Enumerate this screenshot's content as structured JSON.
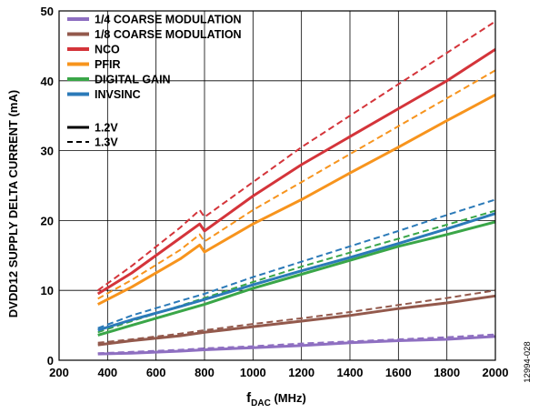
{
  "chart_data": {
    "type": "line",
    "xlabel_main": "f",
    "xlabel_sub": "DAC",
    "xlabel_unit": " (MHz)",
    "ylabel": "DVDD12 SUPPLY DELTA CURRENT (mA)",
    "xlim": [
      200,
      2000
    ],
    "ylim": [
      0,
      50
    ],
    "x_ticks": [
      200,
      400,
      600,
      800,
      1000,
      1200,
      1400,
      1600,
      1800,
      2000
    ],
    "y_ticks": [
      0,
      10,
      20,
      30,
      40,
      50
    ],
    "grid": true,
    "legend_position": "top-left",
    "figure_id": "12994-028",
    "voltage_styles": [
      {
        "name": "1.2V",
        "dash": "solid"
      },
      {
        "name": "1.3V",
        "dash": "dashed"
      }
    ],
    "series": [
      {
        "name": "1/4 COARSE MODULATION",
        "color": "#8e6fc1",
        "x_1_2V": [
          360,
          500,
          700,
          800,
          1000,
          1200,
          1400,
          1600,
          1800,
          2000
        ],
        "values_1_2V": [
          0.9,
          1.0,
          1.3,
          1.5,
          1.8,
          2.1,
          2.5,
          2.8,
          3.0,
          3.4
        ],
        "x_1_3V": [
          360,
          500,
          700,
          800,
          1000,
          1200,
          1400,
          1600,
          1800,
          2000
        ],
        "values_1_3V": [
          1.0,
          1.2,
          1.5,
          1.7,
          2.0,
          2.4,
          2.7,
          3.0,
          3.3,
          3.7
        ]
      },
      {
        "name": "1/8 COARSE MODULATION",
        "color": "#93594c",
        "x_1_2V": [
          360,
          500,
          700,
          800,
          1000,
          1200,
          1400,
          1600,
          1800,
          2000
        ],
        "values_1_2V": [
          2.2,
          2.8,
          3.5,
          4.0,
          4.8,
          5.6,
          6.4,
          7.4,
          8.2,
          9.2
        ],
        "x_1_3V": [
          360,
          500,
          700,
          800,
          1000,
          1200,
          1400,
          1600,
          1800,
          2000
        ],
        "values_1_3V": [
          2.5,
          3.0,
          3.8,
          4.3,
          5.2,
          6.0,
          6.9,
          7.9,
          8.9,
          10.0
        ]
      },
      {
        "name": "NCO",
        "color": "#d4343a",
        "x_1_2V": [
          360,
          500,
          700,
          780,
          800,
          1000,
          1200,
          1400,
          1600,
          1800,
          2000
        ],
        "values_1_2V": [
          9.5,
          12.5,
          17.5,
          19.5,
          18.5,
          23.5,
          28.0,
          32.0,
          36.0,
          40.0,
          44.5
        ],
        "x_1_3V": [
          360,
          500,
          700,
          780,
          800,
          1000,
          1200,
          1400,
          1600,
          1800,
          2000
        ],
        "values_1_3V": [
          10.0,
          13.5,
          19.0,
          21.5,
          20.5,
          25.5,
          30.5,
          35.0,
          39.5,
          44.0,
          48.5
        ]
      },
      {
        "name": "PFIR",
        "color": "#f7941d",
        "x_1_2V": [
          360,
          500,
          700,
          780,
          800,
          1000,
          1200,
          1400,
          1600,
          1800,
          2000
        ],
        "values_1_2V": [
          8.0,
          10.5,
          14.5,
          16.5,
          15.5,
          19.5,
          23.0,
          26.8,
          30.5,
          34.3,
          38.0
        ],
        "x_1_3V": [
          360,
          500,
          700,
          780,
          800,
          1000,
          1200,
          1400,
          1600,
          1800,
          2000
        ],
        "values_1_3V": [
          8.8,
          11.5,
          15.8,
          18.0,
          17.0,
          21.5,
          25.5,
          29.5,
          33.5,
          37.5,
          41.5
        ]
      },
      {
        "name": "DIGITAL GAIN",
        "color": "#3aa648",
        "x_1_2V": [
          360,
          500,
          700,
          800,
          1000,
          1200,
          1400,
          1600,
          1800,
          2000
        ],
        "values_1_2V": [
          3.6,
          5.0,
          7.0,
          8.0,
          10.3,
          12.3,
          14.3,
          16.3,
          18.0,
          19.8
        ],
        "x_1_3V": [
          360,
          500,
          700,
          800,
          1000,
          1200,
          1400,
          1600,
          1800,
          2000
        ],
        "values_1_3V": [
          4.0,
          5.6,
          7.8,
          8.9,
          11.2,
          13.4,
          15.4,
          17.4,
          19.4,
          21.4
        ]
      },
      {
        "name": "INVSINC",
        "color": "#2b7ab8",
        "x_1_2V": [
          360,
          500,
          700,
          800,
          1000,
          1200,
          1400,
          1600,
          1800,
          2000
        ],
        "values_1_2V": [
          4.3,
          5.8,
          7.7,
          8.7,
          10.8,
          12.8,
          14.7,
          16.7,
          18.8,
          21.0
        ],
        "x_1_3V": [
          360,
          500,
          700,
          800,
          1000,
          1200,
          1400,
          1600,
          1800,
          2000
        ],
        "values_1_3V": [
          4.6,
          6.4,
          8.5,
          9.5,
          11.9,
          14.1,
          16.3,
          18.5,
          20.8,
          23.0
        ]
      }
    ]
  }
}
